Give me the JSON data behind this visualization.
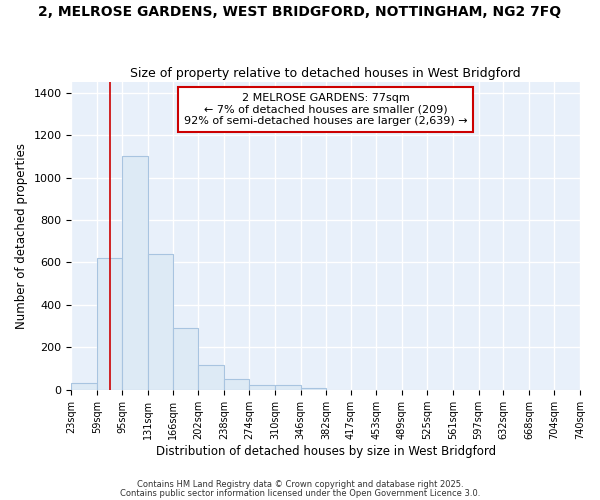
{
  "title1": "2, MELROSE GARDENS, WEST BRIDGFORD, NOTTINGHAM, NG2 7FQ",
  "title2": "Size of property relative to detached houses in West Bridgford",
  "xlabel": "Distribution of detached houses by size in West Bridgford",
  "ylabel": "Number of detached properties",
  "bar_edges": [
    23,
    59,
    95,
    131,
    166,
    202,
    238,
    274,
    310,
    346,
    382,
    417,
    453,
    489,
    525,
    561,
    597,
    632,
    668,
    704,
    740
  ],
  "bar_heights": [
    30,
    620,
    1100,
    640,
    290,
    115,
    50,
    20,
    20,
    8,
    0,
    0,
    0,
    0,
    0,
    0,
    0,
    0,
    0,
    0
  ],
  "bar_color": "#DDEAF5",
  "bar_edge_color": "#A8C4E0",
  "property_size": 77,
  "vline_color": "#CC0000",
  "annotation_text": "2 MELROSE GARDENS: 77sqm\n← 7% of detached houses are smaller (209)\n92% of semi-detached houses are larger (2,639) →",
  "annotation_box_color": "#CC0000",
  "ylim": [
    0,
    1450
  ],
  "yticks": [
    0,
    200,
    400,
    600,
    800,
    1000,
    1200,
    1400
  ],
  "background_color": "#E8F0FA",
  "grid_color": "#FFFFFF",
  "footnote1": "Contains HM Land Registry data © Crown copyright and database right 2025.",
  "footnote2": "Contains public sector information licensed under the Open Government Licence 3.0."
}
